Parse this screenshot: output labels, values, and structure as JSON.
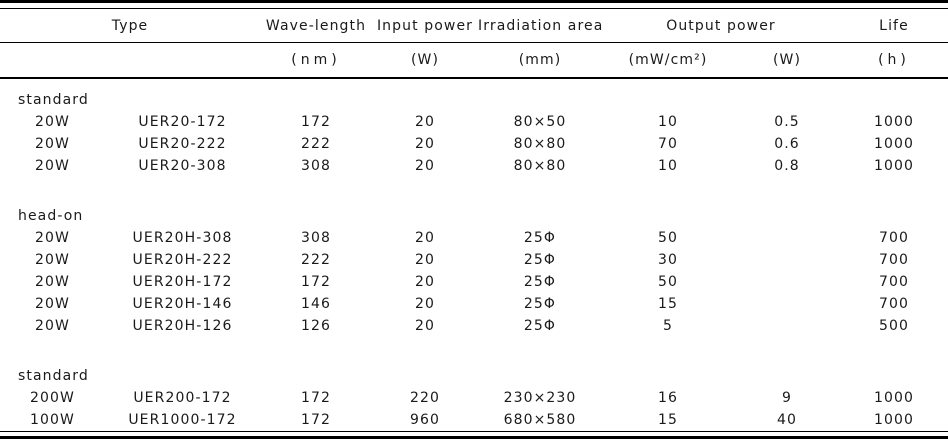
{
  "table": {
    "header": {
      "type": "Type",
      "wavelength": "Wave-length",
      "input_power": "Input power",
      "irradiation_area": "Irradiation area",
      "output_power": "Output power",
      "life": "Life"
    },
    "units": {
      "wavelength": "(nm)",
      "input_power": "(W)",
      "irradiation_area": "(mm)",
      "output_power_density": "(mW/cm²)",
      "output_power_watts": "(W)",
      "life": "(h)"
    },
    "sections": [
      {
        "group": "standard",
        "rows": [
          [
            "20W",
            "UER20-172",
            "172",
            "20",
            "80×50",
            "10",
            "0.5",
            "1000"
          ],
          [
            "20W",
            "UER20-222",
            "222",
            "20",
            "80×80",
            "70",
            "0.6",
            "1000"
          ],
          [
            "20W",
            "UER20-308",
            "308",
            "20",
            "80×80",
            "10",
            "0.8",
            "1000"
          ]
        ]
      },
      {
        "group": "head-on",
        "rows": [
          [
            "20W",
            "UER20H-308",
            "308",
            "20",
            "25Φ",
            "50",
            "",
            "700"
          ],
          [
            "20W",
            "UER20H-222",
            "222",
            "20",
            "25Φ",
            "30",
            "",
            "700"
          ],
          [
            "20W",
            "UER20H-172",
            "172",
            "20",
            "25Φ",
            "50",
            "",
            "700"
          ],
          [
            "20W",
            "UER20H-146",
            "146",
            "20",
            "25Φ",
            "15",
            "",
            "700"
          ],
          [
            "20W",
            "UER20H-126",
            "126",
            "20",
            "25Φ",
            "5",
            "",
            "500"
          ]
        ]
      },
      {
        "group": "standard",
        "rows": [
          [
            "200W",
            "UER200-172",
            "172",
            "220",
            "230×230",
            "16",
            "9",
            "1000"
          ],
          [
            "100W",
            "UER1000-172",
            "172",
            "960",
            "680×580",
            "15",
            "40",
            "1000"
          ]
        ]
      }
    ]
  },
  "colors": {
    "text": "#1a1a1a",
    "rule": "#000000",
    "background": "#ffffff"
  }
}
